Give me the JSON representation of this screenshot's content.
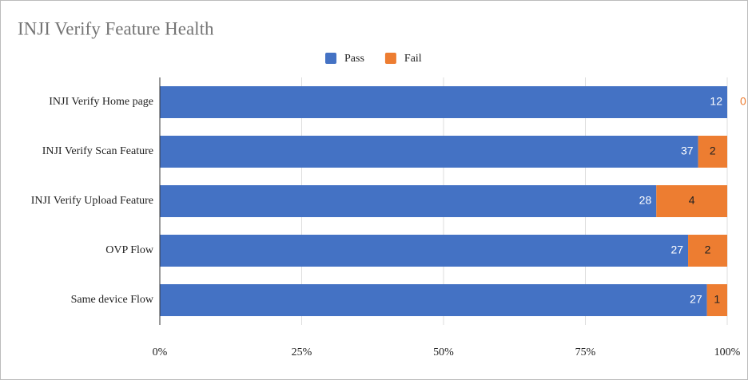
{
  "chart_data": {
    "type": "bar",
    "orientation": "horizontal",
    "stack": "percent",
    "title": "INJI Verify Feature Health",
    "categories": [
      "INJI Verify Home page",
      "INJI Verify Scan Feature",
      "INJI Verify Upload Feature",
      "OVP Flow",
      "Same device Flow"
    ],
    "series": [
      {
        "name": "Pass",
        "color": "#4472c4",
        "values": [
          12,
          37,
          28,
          27,
          27
        ]
      },
      {
        "name": "Fail",
        "color": "#ed7d31",
        "values": [
          0,
          2,
          4,
          2,
          1
        ]
      }
    ],
    "xlim": [
      0,
      100
    ],
    "xticks": [
      {
        "value": 0,
        "label": "0%"
      },
      {
        "value": 25,
        "label": "25%"
      },
      {
        "value": 50,
        "label": "50%"
      },
      {
        "value": 75,
        "label": "75%"
      },
      {
        "value": 100,
        "label": "100%"
      }
    ],
    "grid": true,
    "legend": "top"
  }
}
